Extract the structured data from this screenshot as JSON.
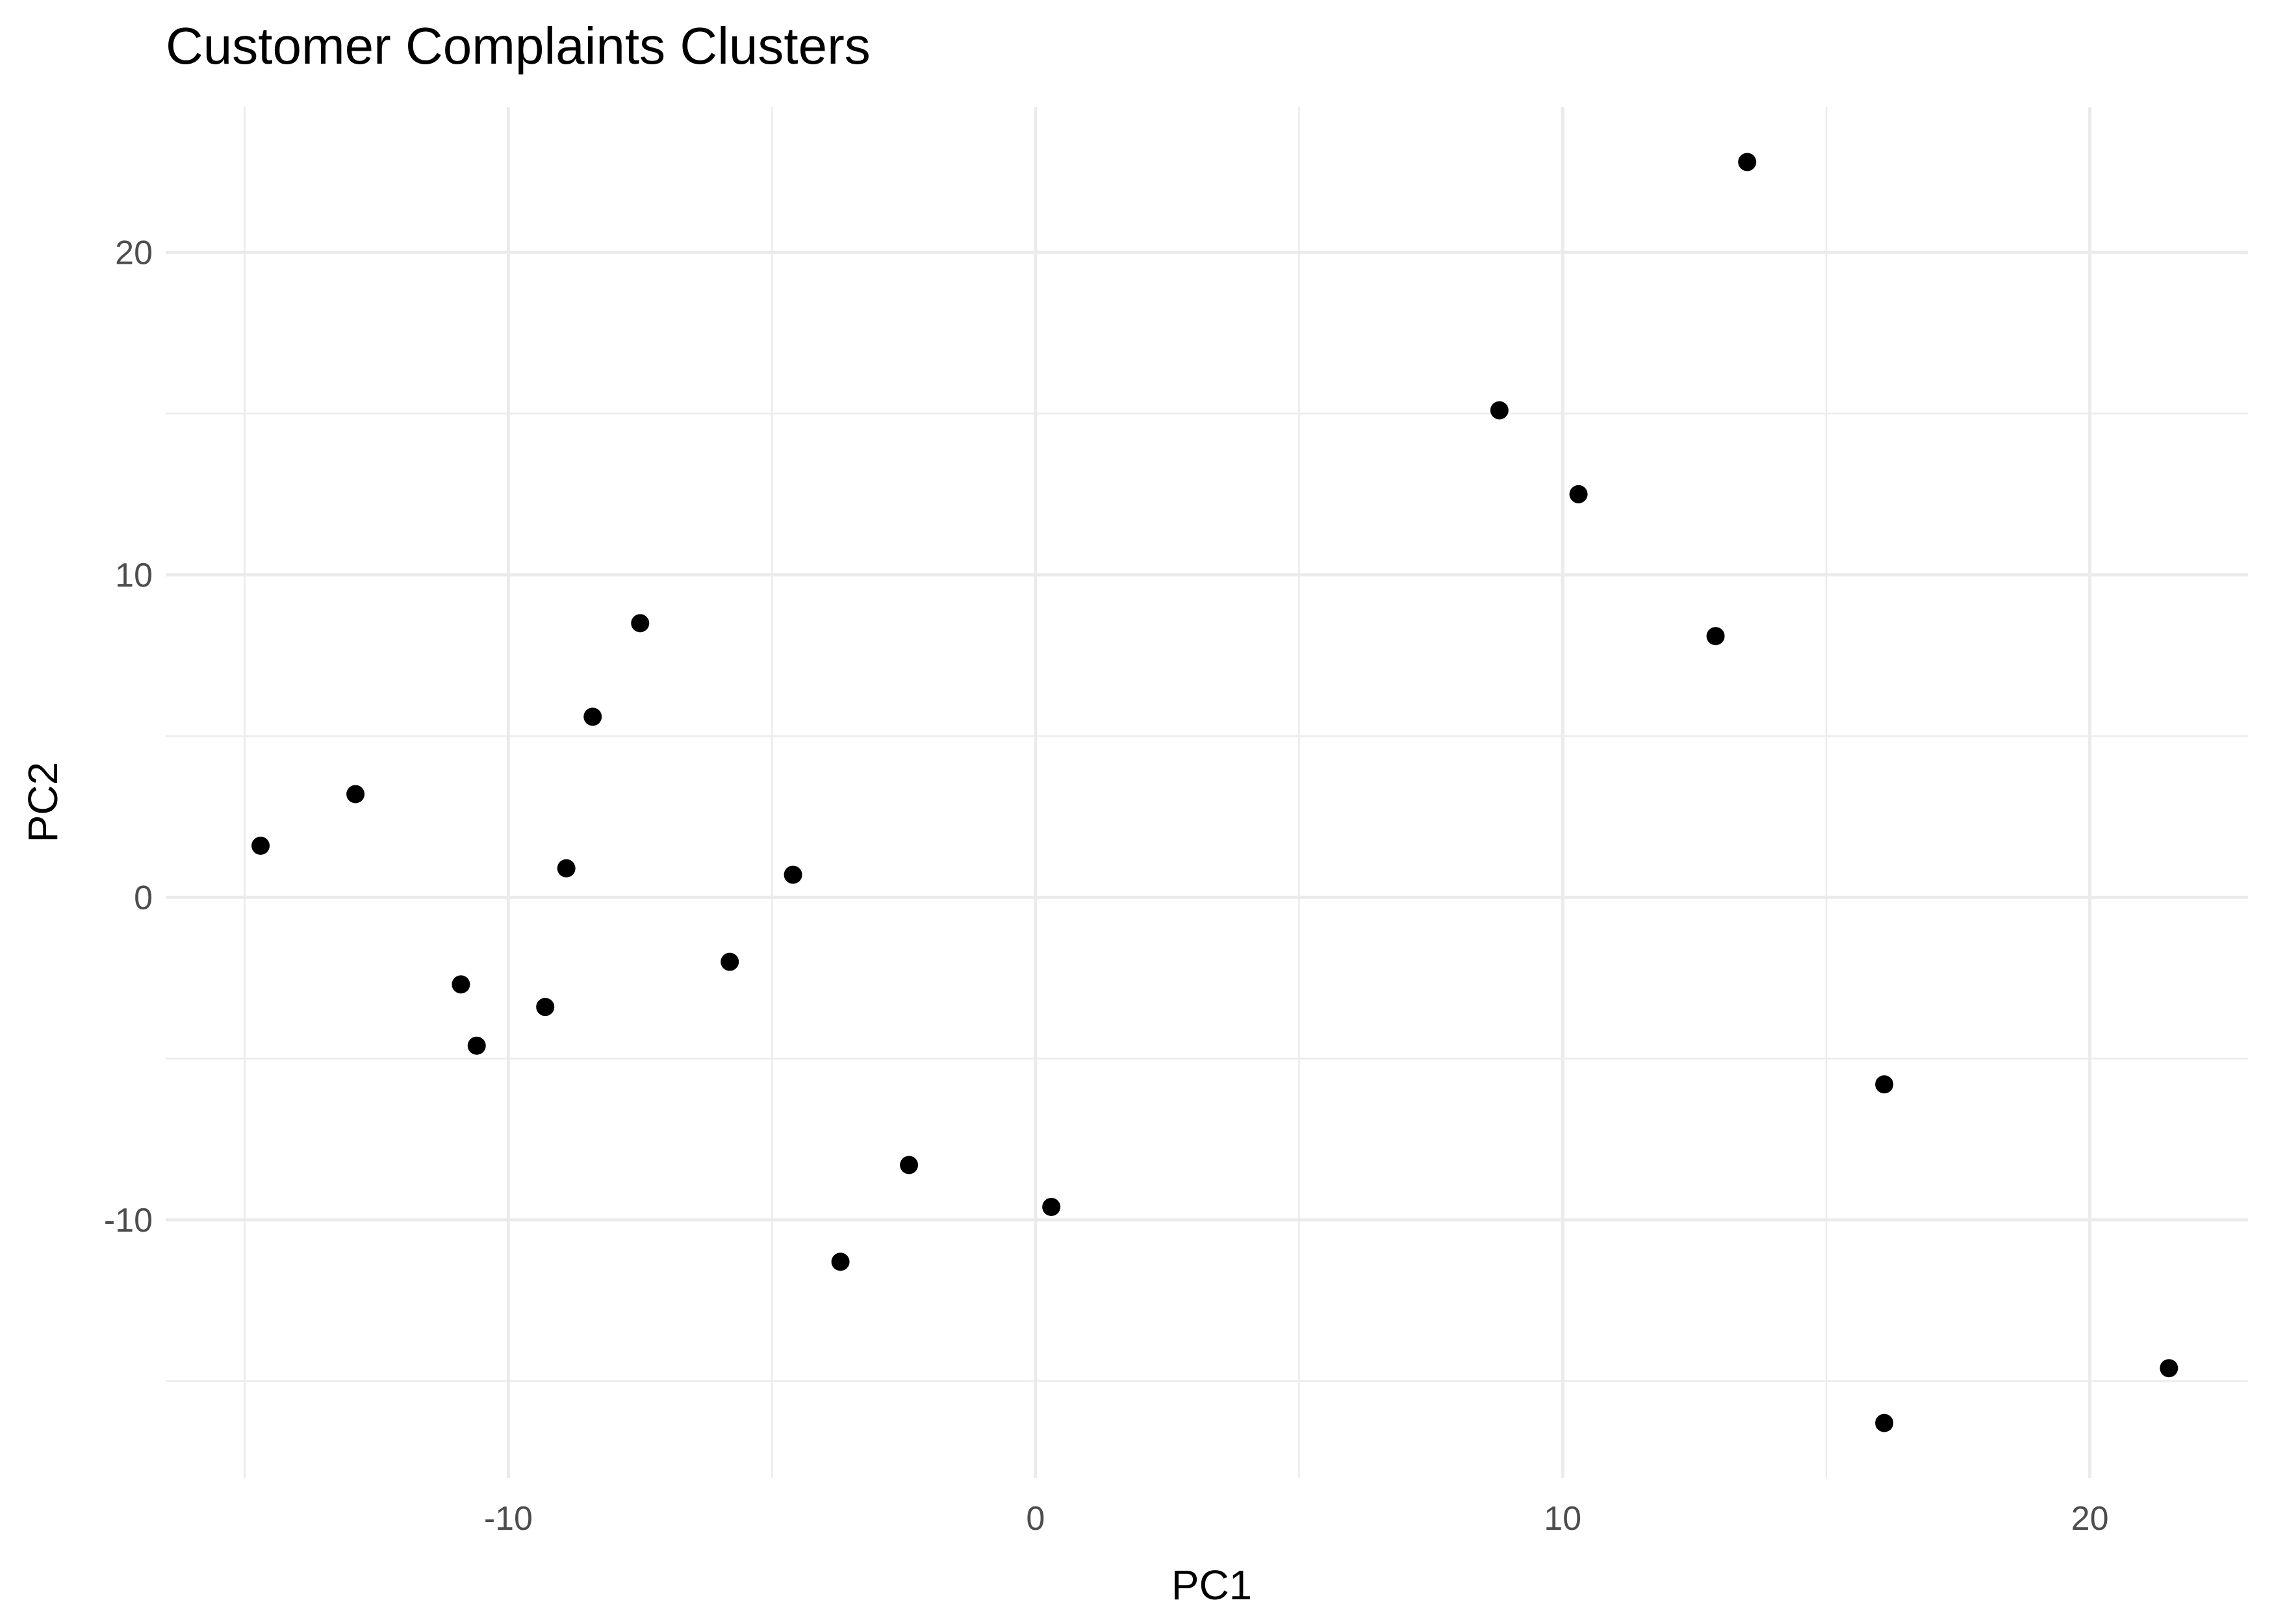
{
  "chart_data": {
    "type": "scatter",
    "title": "Customer Complaints Clusters",
    "xlabel": "PC1",
    "ylabel": "PC2",
    "xlim": [
      -16.5,
      23.0
    ],
    "ylim": [
      -18.0,
      24.5
    ],
    "x_ticks": [
      -10,
      0,
      10,
      20
    ],
    "y_ticks": [
      -10,
      0,
      10,
      20
    ],
    "x_tick_labels": [
      "-10",
      "0",
      "10",
      "20"
    ],
    "y_tick_labels": [
      "-10",
      "0",
      "10",
      "20"
    ],
    "grid": true,
    "legend": "none",
    "point_color": "#000000",
    "grid_color": "#ebebeb",
    "series": [
      {
        "x": [
          -14.7,
          -12.9,
          -10.9,
          -10.6,
          -9.3,
          -8.9,
          -8.4,
          -7.5,
          -5.8,
          -4.6,
          -3.7,
          -2.4,
          0.3,
          8.8,
          10.3,
          12.9,
          13.5,
          16.1,
          16.1,
          21.5
        ],
        "y": [
          1.6,
          3.2,
          -2.7,
          -4.6,
          -3.4,
          0.9,
          5.6,
          8.5,
          -2.0,
          0.7,
          -11.3,
          -8.3,
          -9.6,
          15.1,
          12.5,
          8.1,
          22.8,
          -5.8,
          -16.3,
          -14.6
        ]
      }
    ]
  }
}
